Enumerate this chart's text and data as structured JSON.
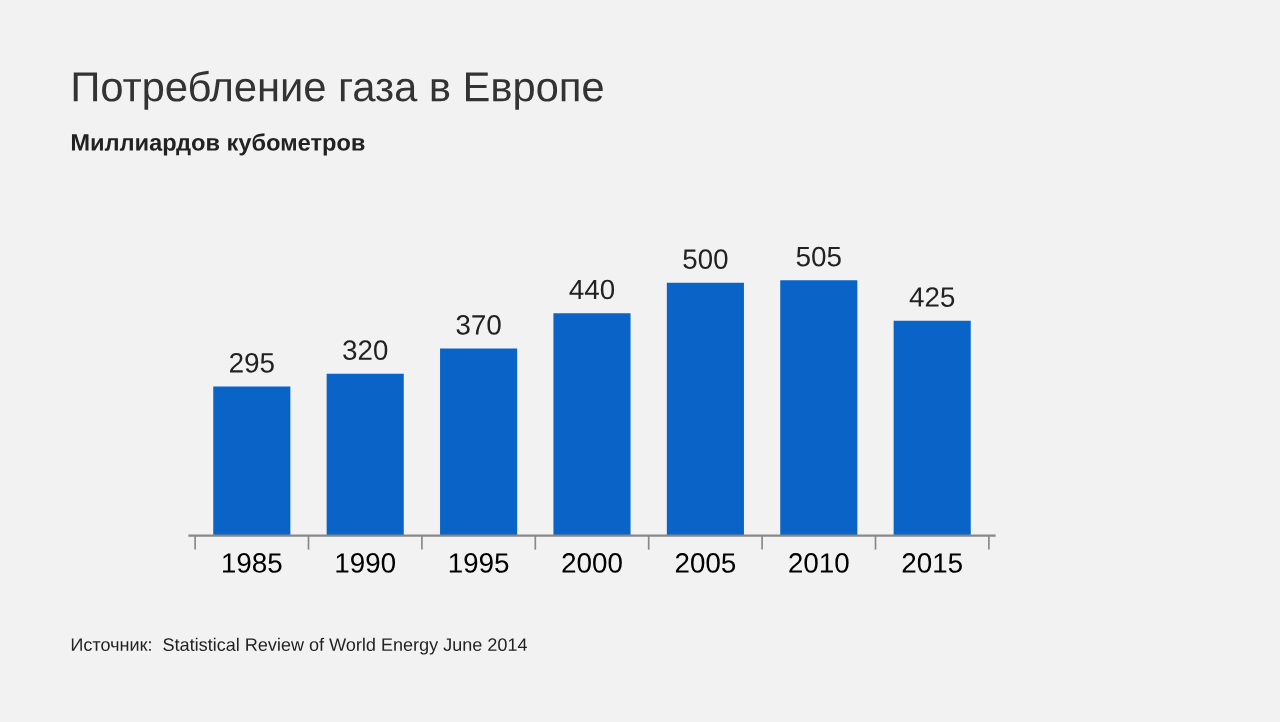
{
  "chart_data": {
    "type": "bar",
    "title": "Потребление газа в Европе",
    "subtitle": "Миллиардов кубометров",
    "categories": [
      "1985",
      "1990",
      "1995",
      "2000",
      "2005",
      "2010",
      "2015"
    ],
    "values": [
      295,
      320,
      370,
      440,
      500,
      505,
      425
    ],
    "color": "#0a64c8",
    "data_labels": true,
    "grid": false,
    "legend": false,
    "annotations": [
      "Источник:  Statistical Review of World Energy June 2014"
    ]
  }
}
